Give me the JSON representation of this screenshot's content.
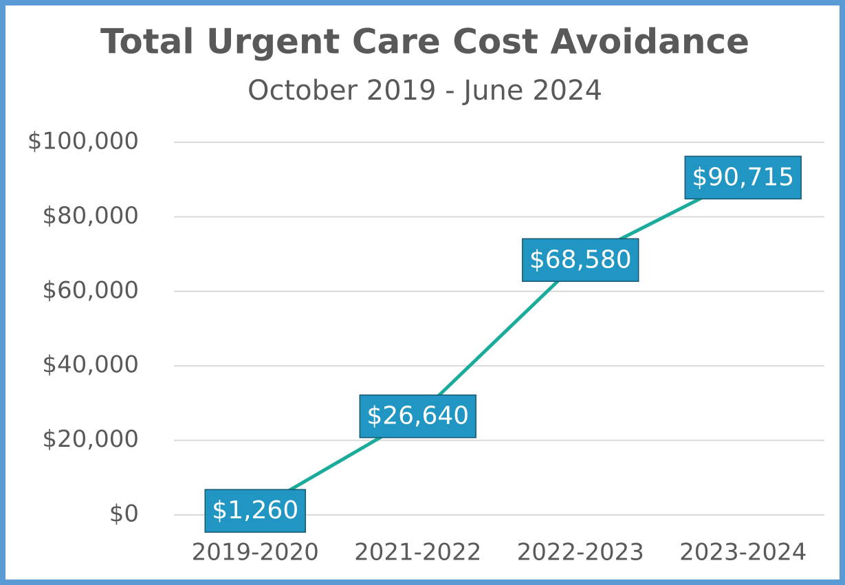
{
  "chart_data": {
    "type": "line",
    "title": "Total Urgent Care Cost Avoidance",
    "subtitle": "October 2019 - June 2024",
    "categories": [
      "2019-2020",
      "2021-2022",
      "2022-2023",
      "2023-2024"
    ],
    "series": [
      {
        "name": "Total Urgent Care Cost Avoidance",
        "color": "#1aab9b",
        "values": [
          1260,
          26640,
          68580,
          90715
        ],
        "value_labels": [
          "$1,260",
          "$26,640",
          "$68,580",
          "$90,715"
        ]
      }
    ],
    "ylim": [
      0,
      100000
    ],
    "yticks": [
      {
        "value": 0,
        "label": "$0"
      },
      {
        "value": 20000,
        "label": "$20,000"
      },
      {
        "value": 40000,
        "label": "$40,000"
      },
      {
        "value": 60000,
        "label": "$60,000"
      },
      {
        "value": 80000,
        "label": "$80,000"
      },
      {
        "value": 100000,
        "label": "$100,000"
      }
    ],
    "grid": true
  }
}
